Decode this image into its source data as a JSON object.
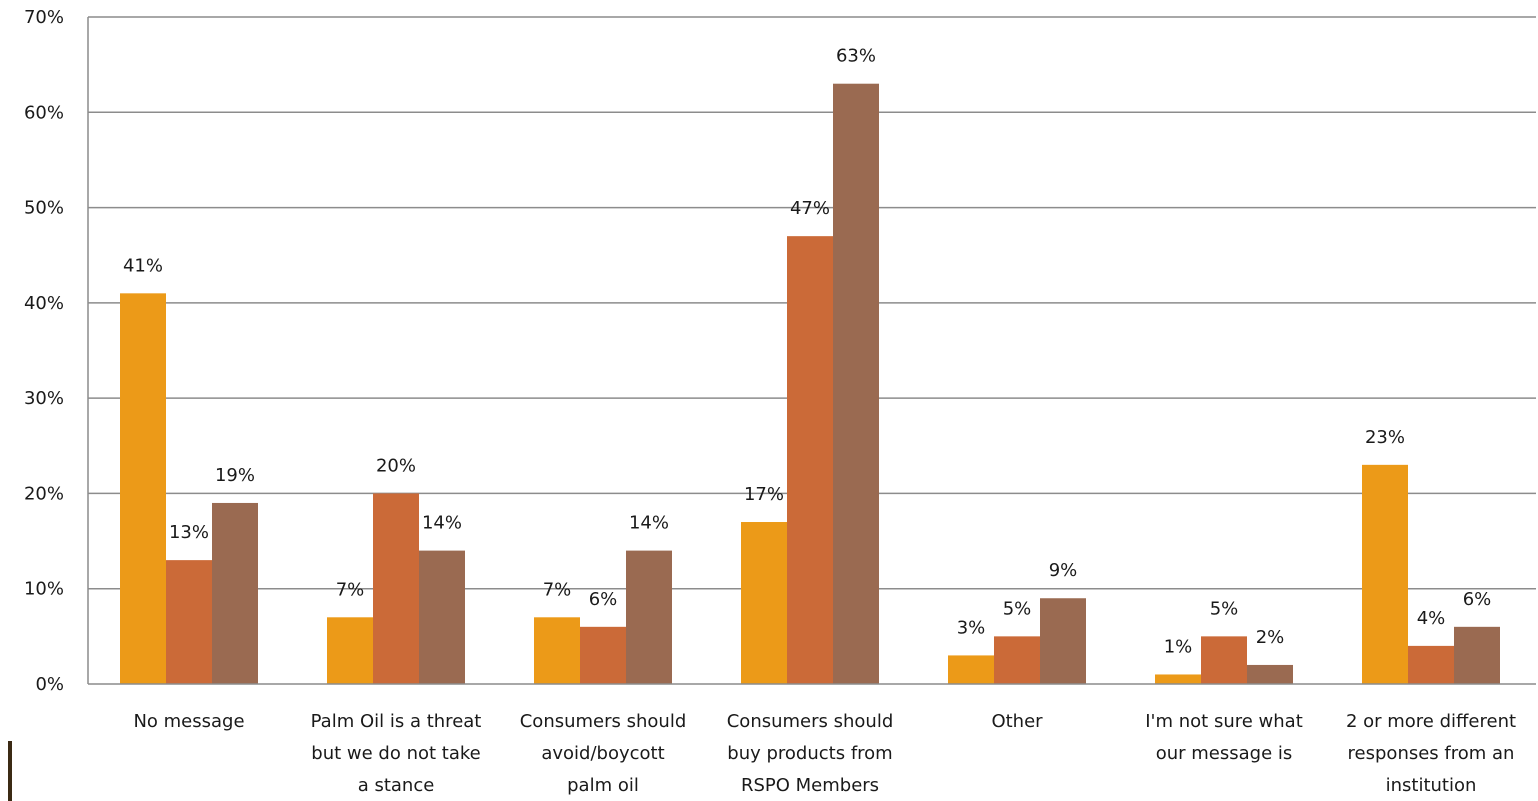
{
  "chart_data": {
    "type": "bar",
    "title": "",
    "xlabel": "",
    "ylabel": "",
    "ylim": [
      0,
      70
    ],
    "y_ticks": [
      "0%",
      "10%",
      "20%",
      "30%",
      "40%",
      "50%",
      "60%",
      "70%"
    ],
    "grid": true,
    "legend": "none",
    "value_suffix": "%",
    "categories": [
      [
        "No message"
      ],
      [
        "Palm Oil is a threat",
        "but we do not take",
        "a stance"
      ],
      [
        "Consumers should",
        "avoid/boycott",
        "palm oil"
      ],
      [
        "Consumers should",
        "buy products from",
        "RSPO Members"
      ],
      [
        "Other"
      ],
      [
        "I'm not sure what",
        "our message is"
      ],
      [
        "2 or more different",
        "responses from an",
        "institution"
      ]
    ],
    "series": [
      {
        "color": "#EC9A18",
        "values": [
          41,
          7,
          7,
          17,
          3,
          1,
          23
        ]
      },
      {
        "color": "#CB6A38",
        "values": [
          13,
          20,
          6,
          47,
          5,
          5,
          4
        ]
      },
      {
        "color": "#9A6A51",
        "values": [
          19,
          14,
          14,
          63,
          9,
          2,
          6
        ]
      }
    ]
  }
}
